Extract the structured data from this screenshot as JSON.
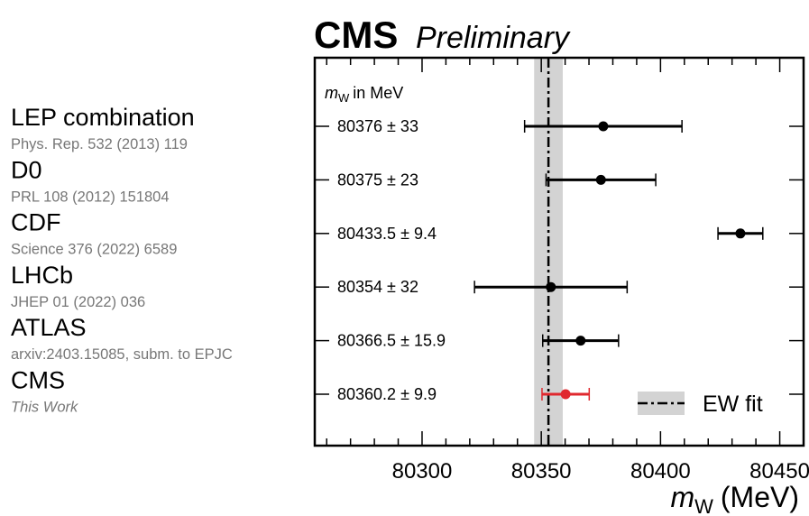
{
  "header": {
    "brand": "CMS",
    "status": "Preliminary"
  },
  "colors": {
    "highlight": "#e0282e",
    "band": "#d3d3d3",
    "ref_text": "#777777"
  },
  "chart_data": {
    "type": "scatter",
    "orientation": "horizontal-errorbars",
    "xlabel": {
      "symbol": "m",
      "subscript": "W",
      "unit": "(MeV)"
    },
    "values_header": {
      "symbol": "m",
      "subscript": "W",
      "suffix": "in MeV"
    },
    "xlim": [
      80255,
      80460
    ],
    "xticks": [
      80300,
      80350,
      80400,
      80450
    ],
    "xtick_labels": [
      "80300",
      "80350",
      "80400",
      "80450"
    ],
    "minor_tick_step": 10,
    "measurements": [
      {
        "name": "LEP combination",
        "reference": "Phys. Rep. 532 (2013) 119",
        "value": 80376,
        "error": 33,
        "label": "80376 ± 33",
        "highlight": false
      },
      {
        "name": "D0",
        "reference": "PRL 108 (2012) 151804",
        "value": 80375,
        "error": 23,
        "label": "80375 ± 23",
        "highlight": false
      },
      {
        "name": "CDF",
        "reference": "Science 376 (2022) 6589",
        "value": 80433.5,
        "error": 9.4,
        "label": "80433.5 ± 9.4",
        "highlight": false
      },
      {
        "name": "LHCb",
        "reference": "JHEP 01 (2022) 036",
        "value": 80354,
        "error": 32,
        "label": "80354 ± 32",
        "highlight": false
      },
      {
        "name": "ATLAS",
        "reference": "arxiv:2403.15085, subm. to EPJC",
        "value": 80366.5,
        "error": 15.9,
        "label": "80366.5 ± 15.9",
        "highlight": false
      },
      {
        "name": "CMS",
        "reference": "This Work",
        "value": 80360.2,
        "error": 9.9,
        "label": "80360.2 ± 9.9",
        "highlight": true
      }
    ],
    "ew_fit": {
      "label": "EW fit",
      "center": 80353,
      "band": [
        80347,
        80359
      ]
    },
    "legend": {
      "placement": "bottom-right"
    }
  }
}
